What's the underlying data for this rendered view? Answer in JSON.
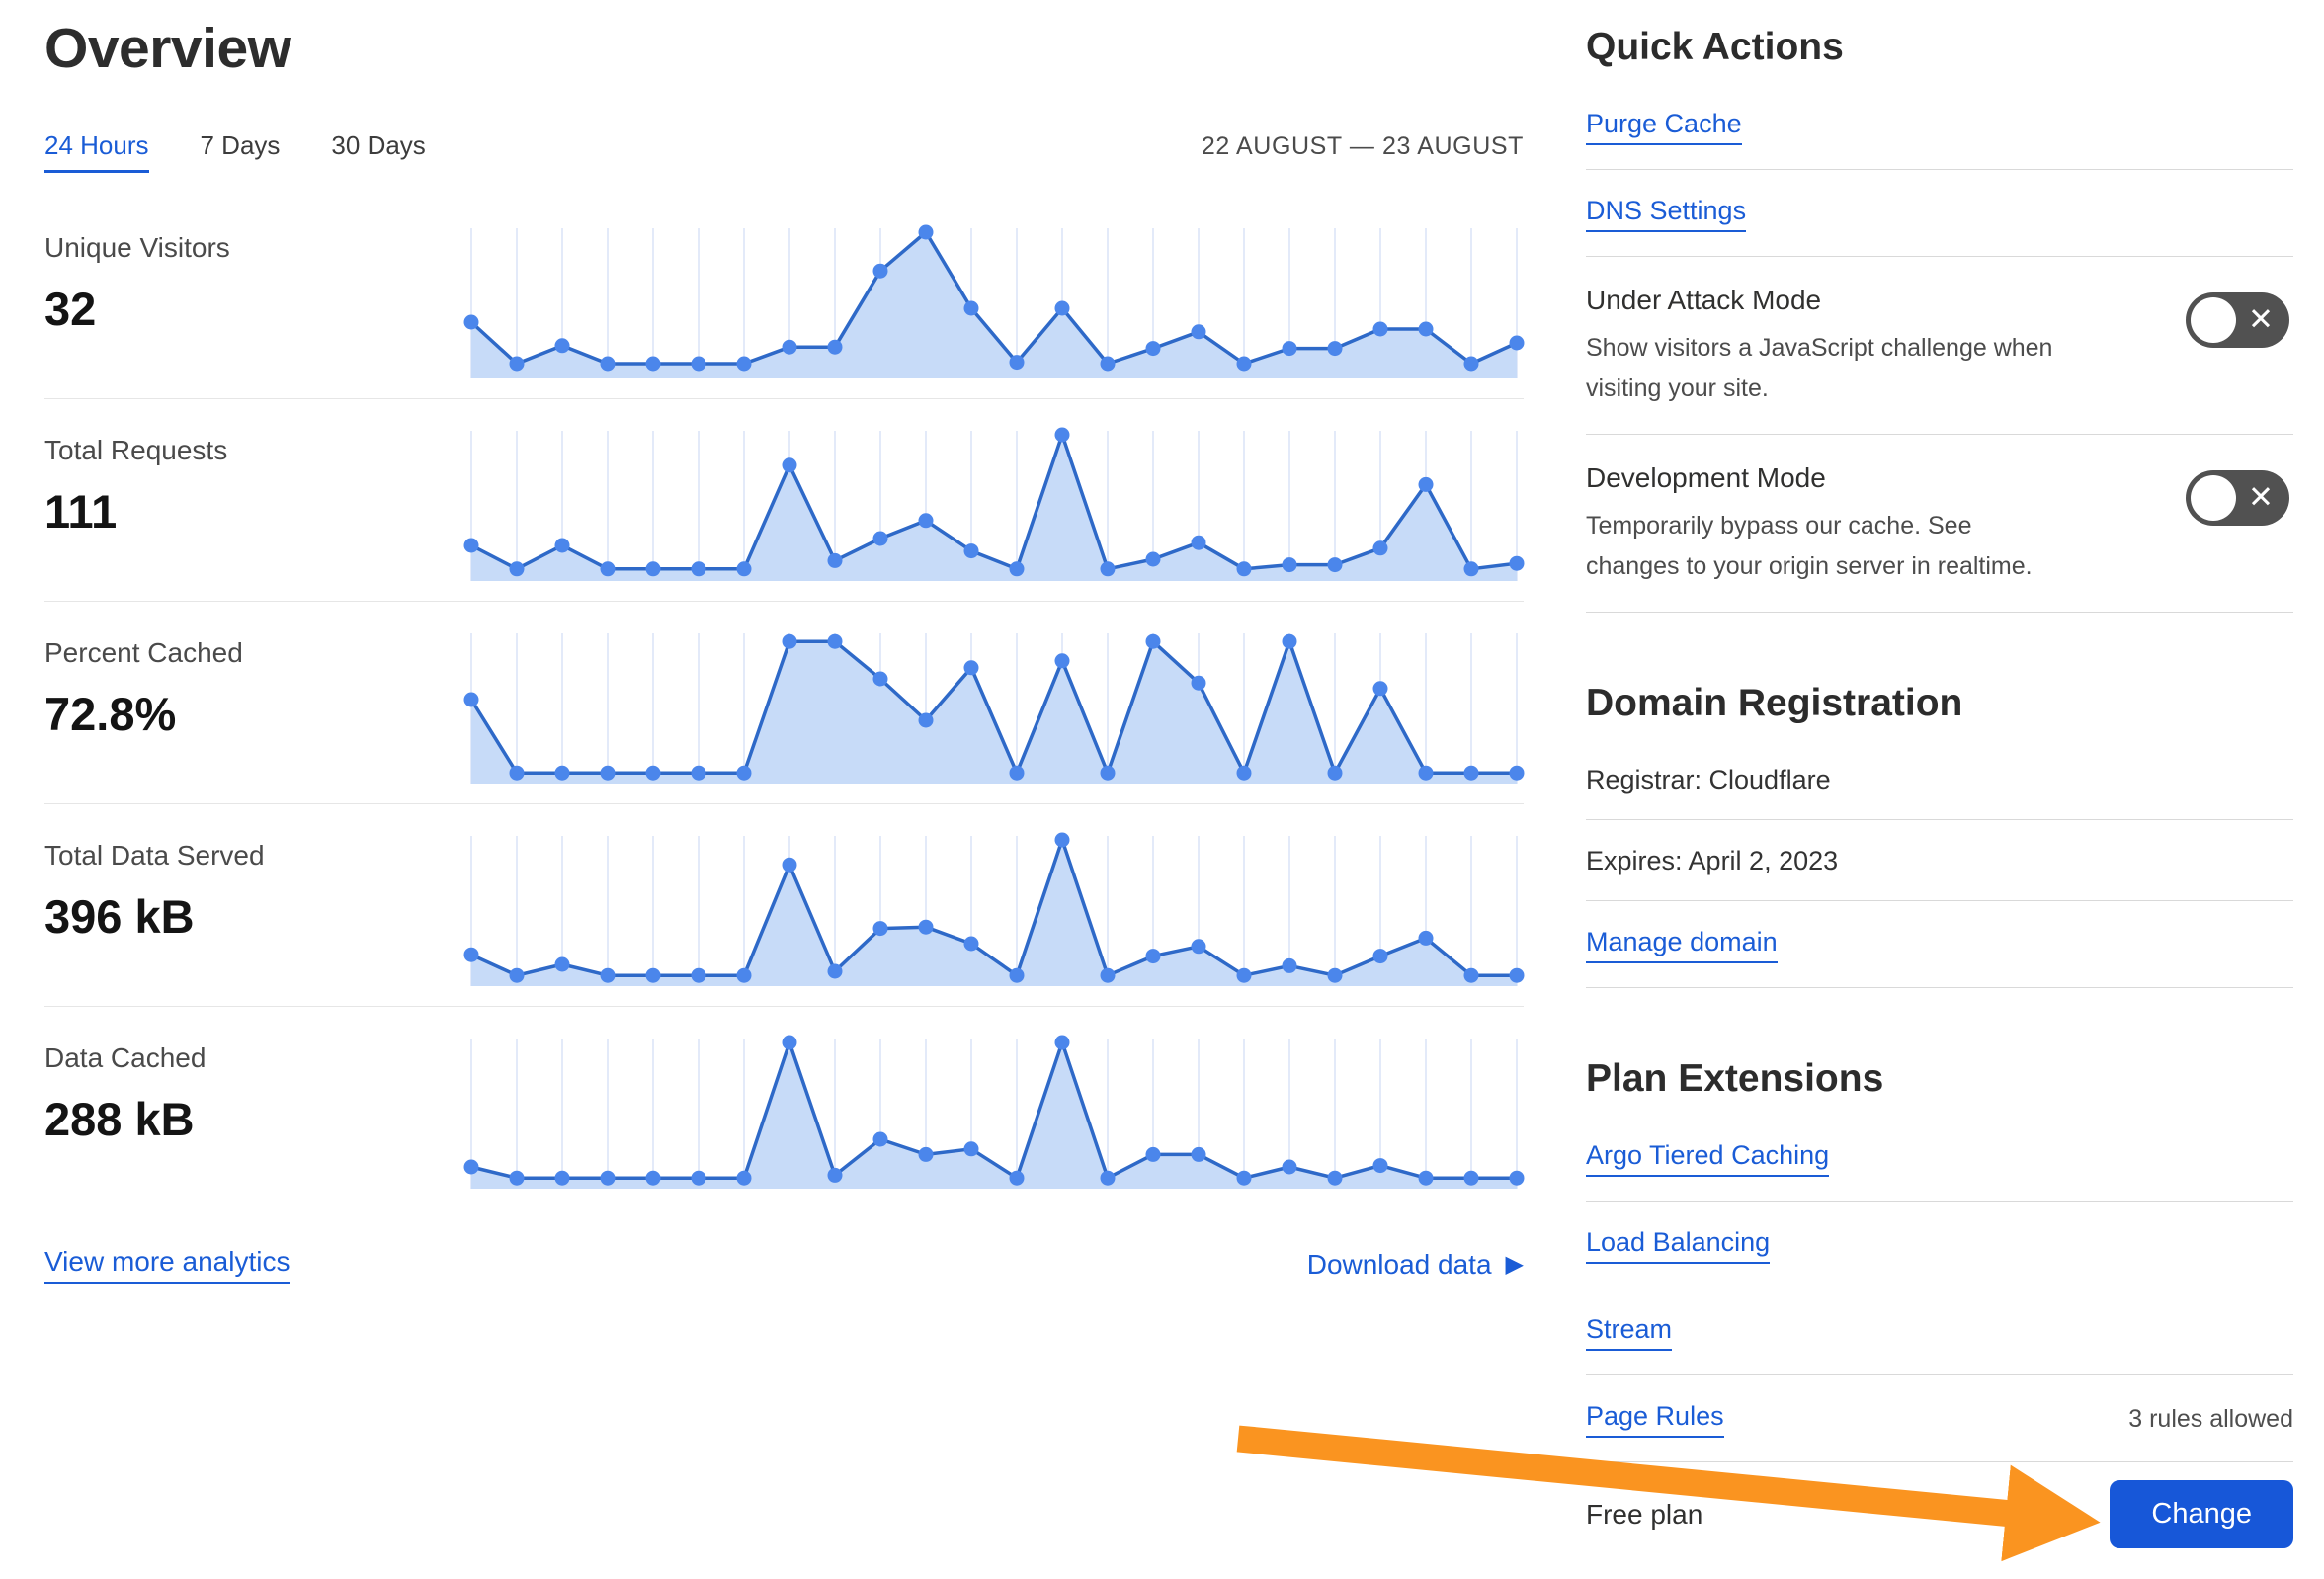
{
  "header": {
    "title": "Overview",
    "date_range": "22 AUGUST — 23 AUGUST"
  },
  "tabs": [
    {
      "label": "24 Hours",
      "active": true
    },
    {
      "label": "7 Days",
      "active": false
    },
    {
      "label": "30 Days",
      "active": false
    }
  ],
  "metrics": [
    {
      "label": "Unique Visitors",
      "value": "32"
    },
    {
      "label": "Total Requests",
      "value": "111"
    },
    {
      "label": "Percent Cached",
      "value": "72.8%"
    },
    {
      "label": "Total Data Served",
      "value": "396 kB"
    },
    {
      "label": "Data Cached",
      "value": "288 kB"
    }
  ],
  "chart_data": {
    "type": "area",
    "x_label": "time (hourly buckets, 22 August — 23 August)",
    "y_unit": "normalized 0-100 (sparkline height, no axis labels shown)",
    "points_per_series": 24,
    "grid": "vertical light-blue gridlines at each point",
    "series": [
      {
        "name": "Unique Visitors",
        "total_shown": "32",
        "values": [
          35,
          5,
          18,
          5,
          5,
          5,
          5,
          17,
          17,
          72,
          100,
          45,
          6,
          45,
          5,
          16,
          28,
          5,
          16,
          16,
          30,
          30,
          5,
          20
        ]
      },
      {
        "name": "Total Requests",
        "total_shown": "111",
        "values": [
          20,
          3,
          20,
          3,
          3,
          3,
          3,
          78,
          9,
          25,
          38,
          16,
          3,
          100,
          3,
          10,
          22,
          3,
          6,
          6,
          18,
          64,
          3,
          7
        ]
      },
      {
        "name": "Percent Cached",
        "total_shown": "72.8%",
        "values": [
          55,
          2,
          2,
          2,
          2,
          2,
          2,
          97,
          97,
          70,
          40,
          78,
          2,
          83,
          2,
          97,
          67,
          2,
          97,
          2,
          63,
          2,
          2,
          2
        ]
      },
      {
        "name": "Total Data Served",
        "total_shown": "396 kB",
        "values": [
          17,
          2,
          10,
          2,
          2,
          2,
          2,
          82,
          5,
          36,
          37,
          25,
          2,
          100,
          2,
          16,
          23,
          2,
          9,
          2,
          16,
          29,
          2,
          2
        ]
      },
      {
        "name": "Data Cached",
        "total_shown": "288 kB",
        "values": [
          10,
          2,
          2,
          2,
          2,
          2,
          2,
          100,
          4,
          30,
          19,
          23,
          2,
          100,
          2,
          19,
          19,
          2,
          10,
          2,
          11,
          2,
          2,
          2
        ]
      }
    ]
  },
  "footer_links": {
    "view_more": "View more analytics",
    "download": "Download data",
    "play_icon": "▶"
  },
  "sidebar": {
    "quick_actions": {
      "title": "Quick Actions",
      "links": [
        "Purge Cache",
        "DNS Settings"
      ],
      "toggles": [
        {
          "title": "Under Attack Mode",
          "description": "Show visitors a JavaScript challenge when visiting your site.",
          "state": "off",
          "x_icon": "✕"
        },
        {
          "title": "Development Mode",
          "description": "Temporarily bypass our cache. See changes to your origin server in realtime.",
          "state": "off",
          "x_icon": "✕"
        }
      ]
    },
    "domain_registration": {
      "title": "Domain Registration",
      "registrar": "Registrar: Cloudflare",
      "expires": "Expires: April 2, 2023",
      "manage_link": "Manage domain"
    },
    "plan_extensions": {
      "title": "Plan Extensions",
      "links": [
        "Argo Tiered Caching",
        "Load Balancing",
        "Stream",
        "Page Rules"
      ],
      "page_rules_note": "3 rules allowed"
    },
    "plan": {
      "name": "Free plan",
      "change_button": "Change"
    }
  },
  "colors": {
    "link_blue": "#1a5cd6",
    "chart_line": "#2e69c8",
    "chart_dot": "#4b86eb",
    "chart_fill": "#c7dbf8",
    "chart_grid": "#e3eaf9",
    "toggle_bg": "#515151",
    "button_blue": "#1757d8",
    "arrow_orange": "#fa9420",
    "divider": "#d9d9d9"
  }
}
